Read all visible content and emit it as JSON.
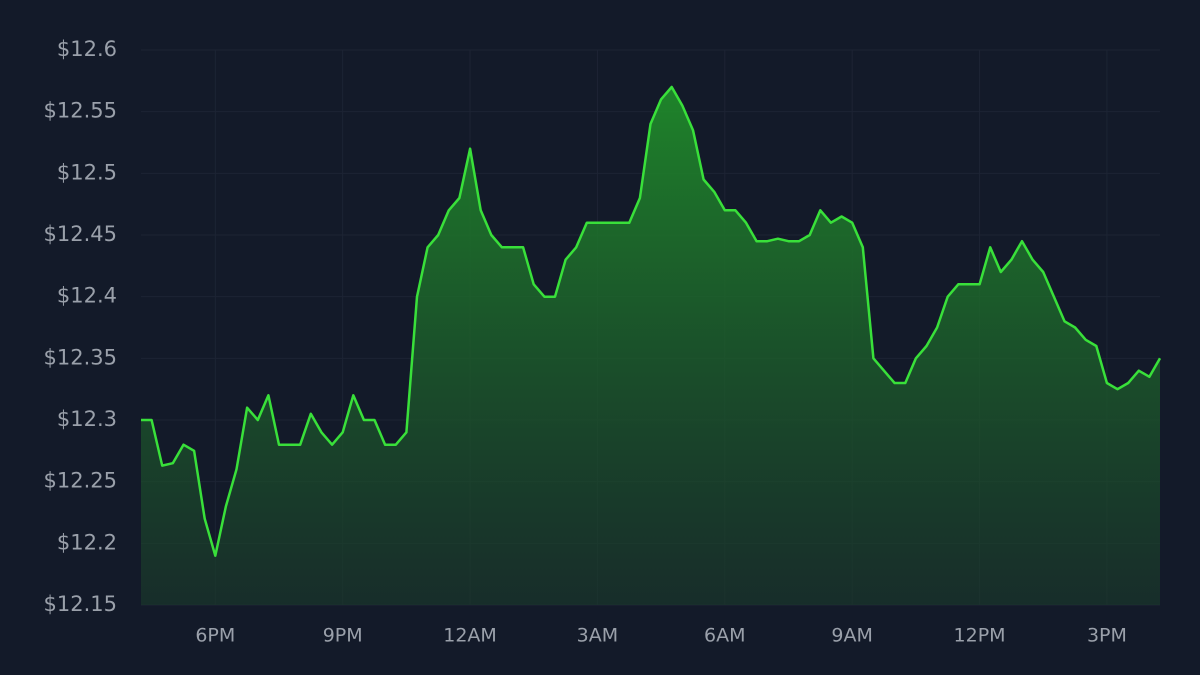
{
  "chart_data": {
    "type": "area",
    "categories": [
      null,
      null,
      null,
      null,
      null,
      null,
      null,
      "6PM",
      null,
      null,
      null,
      null,
      null,
      null,
      null,
      null,
      null,
      null,
      null,
      "9PM",
      null,
      null,
      null,
      null,
      null,
      null,
      null,
      null,
      null,
      null,
      null,
      "12AM",
      null,
      null,
      null,
      null,
      null,
      null,
      null,
      null,
      null,
      null,
      null,
      "3AM",
      null,
      null,
      null,
      null,
      null,
      null,
      null,
      null,
      null,
      null,
      null,
      "6AM",
      null,
      null,
      null,
      null,
      null,
      null,
      null,
      null,
      null,
      null,
      null,
      "9AM",
      null,
      null,
      null,
      null,
      null,
      null,
      null,
      null,
      null,
      null,
      null,
      "12PM",
      null,
      null,
      null,
      null,
      null,
      null,
      null,
      null,
      null,
      null,
      null,
      "3PM",
      null,
      null,
      null,
      null,
      null
    ],
    "values": [
      12.3,
      12.3,
      12.263,
      12.265,
      12.28,
      12.275,
      12.22,
      12.19,
      12.23,
      12.26,
      12.31,
      12.3,
      12.32,
      12.28,
      12.28,
      12.28,
      12.305,
      12.29,
      12.28,
      12.29,
      12.32,
      12.3,
      12.3,
      12.28,
      12.28,
      12.29,
      12.4,
      12.44,
      12.45,
      12.47,
      12.48,
      12.52,
      12.47,
      12.45,
      12.44,
      12.44,
      12.44,
      12.41,
      12.4,
      12.4,
      12.43,
      12.44,
      12.46,
      12.46,
      12.46,
      12.46,
      12.46,
      12.48,
      12.54,
      12.56,
      12.57,
      12.555,
      12.535,
      12.495,
      12.485,
      12.47,
      12.47,
      12.46,
      12.445,
      12.445,
      12.447,
      12.445,
      12.445,
      12.45,
      12.47,
      12.46,
      12.465,
      12.46,
      12.44,
      12.35,
      12.34,
      12.33,
      12.33,
      12.35,
      12.36,
      12.375,
      12.4,
      12.41,
      12.41,
      12.41,
      12.44,
      12.42,
      12.43,
      12.445,
      12.43,
      12.42,
      12.4,
      12.38,
      12.375,
      12.365,
      12.36,
      12.33,
      12.325,
      12.33,
      12.34,
      12.335,
      12.35
    ],
    "color": "#39e03a",
    "ylim": [
      12.15,
      12.6
    ],
    "yticks": [
      {
        "value": 12.15,
        "label": "$12.15"
      },
      {
        "value": 12.2,
        "label": "$12.2"
      },
      {
        "value": 12.25,
        "label": "$12.25"
      },
      {
        "value": 12.3,
        "label": "$12.3"
      },
      {
        "value": 12.35,
        "label": "$12.35"
      },
      {
        "value": 12.4,
        "label": "$12.4"
      },
      {
        "value": 12.45,
        "label": "$12.45"
      },
      {
        "value": 12.5,
        "label": "$12.5"
      },
      {
        "value": 12.55,
        "label": "$12.55"
      },
      {
        "value": 12.6,
        "label": "$12.6"
      }
    ],
    "grid": true
  }
}
